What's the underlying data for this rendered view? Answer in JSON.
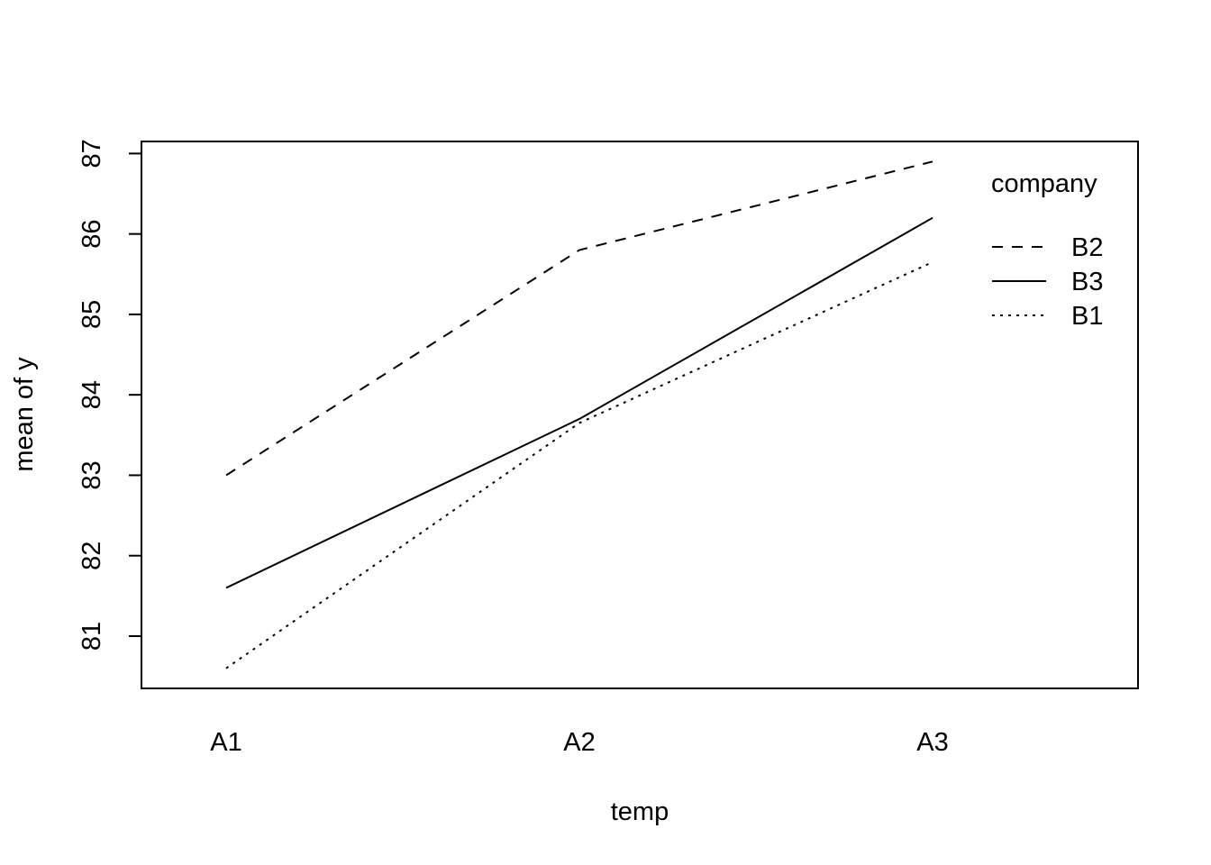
{
  "chart_data": {
    "type": "line",
    "title": "",
    "xlabel": "temp",
    "ylabel": "mean of  y",
    "categories": [
      "A1",
      "A2",
      "A3"
    ],
    "yticks": [
      "81",
      "82",
      "83",
      "84",
      "85",
      "86",
      "87"
    ],
    "ylim": [
      80.35,
      87.15
    ],
    "grid": false,
    "legend": {
      "title": "company",
      "placement": "top-right"
    },
    "series": [
      {
        "name": "B2",
        "line_style": "dashed",
        "values": [
          83.0,
          85.8,
          86.9
        ]
      },
      {
        "name": "B3",
        "line_style": "solid",
        "values": [
          81.6,
          83.7,
          86.2
        ]
      },
      {
        "name": "B1",
        "line_style": "dotted",
        "values": [
          80.6,
          83.65,
          85.65
        ]
      }
    ]
  }
}
